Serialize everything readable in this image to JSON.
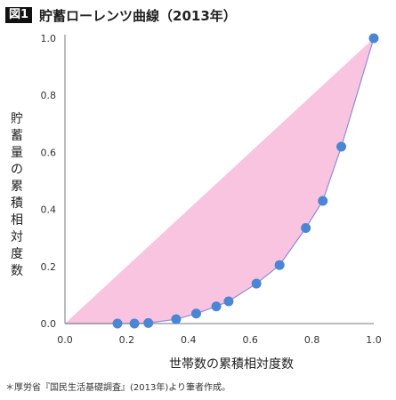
{
  "header": {
    "fig_tag": "図1",
    "title": "貯蓄ローレンツ曲線（2013年）"
  },
  "footnote": "＊厚労省『国民生活基礎調査』(2013年)より筆者作成。",
  "colors": {
    "fill": "#f9c4df",
    "line": "#8b8fd6",
    "marker": "#4a86d4",
    "axis": "#777777"
  },
  "chart_data": {
    "type": "area",
    "xlabel": "世帯数の累積相対度数",
    "ylabel": "貯蓄量の累積相対度数",
    "xlim": [
      0,
      1
    ],
    "ylim": [
      0,
      1
    ],
    "x_ticks": [
      "0.0",
      "0.2",
      "0.4",
      "0.6",
      "0.8",
      "1.0"
    ],
    "y_ticks": [
      "0.0",
      "0.2",
      "0.4",
      "0.6",
      "0.8",
      "1.0"
    ],
    "x_tick_values": [
      0,
      0.2,
      0.4,
      0.6,
      0.8,
      1.0
    ],
    "y_tick_values": [
      0,
      0.2,
      0.4,
      0.6,
      0.8,
      1.0
    ],
    "equality_line": [
      [
        0,
        0
      ],
      [
        1,
        1
      ]
    ],
    "series": [
      {
        "points": [
          [
            0.0,
            0.0
          ],
          [
            0.17,
            0.0
          ],
          [
            0.225,
            0.0
          ],
          [
            0.27,
            0.002
          ],
          [
            0.36,
            0.015
          ],
          [
            0.425,
            0.035
          ],
          [
            0.49,
            0.06
          ],
          [
            0.53,
            0.078
          ],
          [
            0.62,
            0.14
          ],
          [
            0.695,
            0.205
          ],
          [
            0.78,
            0.335
          ],
          [
            0.835,
            0.43
          ],
          [
            0.895,
            0.62
          ],
          [
            1.0,
            1.0
          ]
        ],
        "markers": [
          [
            0.17,
            0.0
          ],
          [
            0.225,
            0.0
          ],
          [
            0.27,
            0.002
          ],
          [
            0.36,
            0.015
          ],
          [
            0.425,
            0.035
          ],
          [
            0.49,
            0.06
          ],
          [
            0.53,
            0.078
          ],
          [
            0.62,
            0.14
          ],
          [
            0.695,
            0.205
          ],
          [
            0.78,
            0.335
          ],
          [
            0.835,
            0.43
          ],
          [
            0.895,
            0.62
          ],
          [
            1.0,
            1.0
          ]
        ]
      }
    ]
  }
}
